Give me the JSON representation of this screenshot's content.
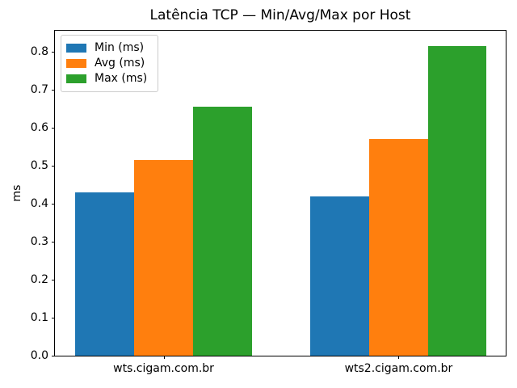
{
  "figure": {
    "background": "#ffffff"
  },
  "chart_data": {
    "type": "bar",
    "title": "Latência TCP — Min/Avg/Max por Host",
    "xlabel": "",
    "ylabel": "ms",
    "categories": [
      "wts.cigam.com.br",
      "wts2.cigam.com.br"
    ],
    "series": [
      {
        "name": "Min (ms)",
        "color": "#1f77b4",
        "values": [
          0.43,
          0.42
        ]
      },
      {
        "name": "Avg (ms)",
        "color": "#ff7f0e",
        "values": [
          0.515,
          0.57
        ]
      },
      {
        "name": "Max (ms)",
        "color": "#2ca02c",
        "values": [
          0.655,
          0.815
        ]
      }
    ],
    "ylim": [
      0,
      0.856
    ],
    "yticks": [
      0.0,
      0.1,
      0.2,
      0.3,
      0.4,
      0.5,
      0.6,
      0.7,
      0.8
    ],
    "ytick_decimals": 1,
    "grid": false,
    "legend_position": "upper left",
    "bar_width": 0.25
  }
}
